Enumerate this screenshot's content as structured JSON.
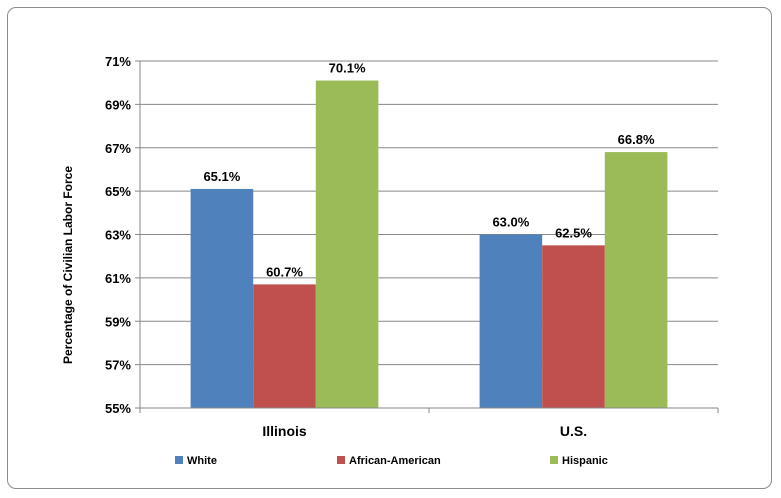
{
  "chart_data": {
    "type": "bar",
    "categories": [
      "Illinois",
      "U.S."
    ],
    "series": [
      {
        "name": "White",
        "values": [
          65.1,
          63.0
        ],
        "color": "#4f81bd"
      },
      {
        "name": "African-American",
        "values": [
          60.7,
          62.5
        ],
        "color": "#c0504d"
      },
      {
        "name": "Hispanic",
        "values": [
          70.1,
          66.8
        ],
        "color": "#9bbb59"
      }
    ],
    "data_labels": [
      [
        "65.1%",
        "63.0%"
      ],
      [
        "60.7%",
        "62.5%"
      ],
      [
        "70.1%",
        "66.8%"
      ]
    ],
    "ylabel": "Percentage of Civilian Labor Force",
    "ylim": [
      55,
      71
    ],
    "yticks": [
      55,
      57,
      59,
      61,
      63,
      65,
      67,
      69,
      71
    ],
    "ytick_labels": [
      "55%",
      "57%",
      "59%",
      "61%",
      "63%",
      "65%",
      "67%",
      "69%",
      "71%"
    ],
    "grid": true,
    "legend_position": "bottom"
  }
}
